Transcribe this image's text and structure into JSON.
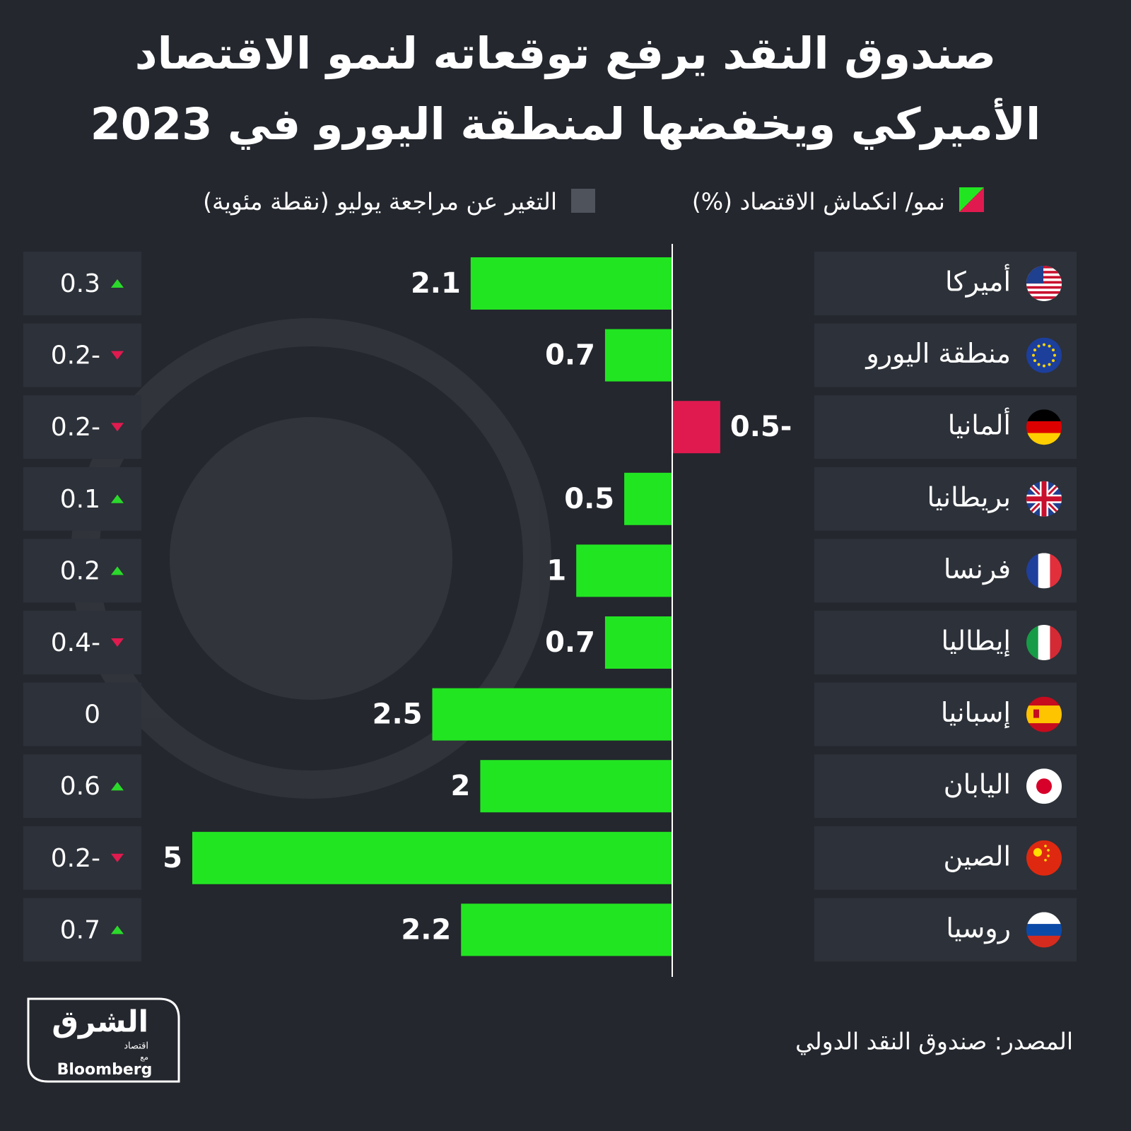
{
  "header": {
    "title_line1": "صندوق النقد يرفع توقعاته لنمو الاقتصاد",
    "title_line2": "الأميركي ويخفضها لمنطقة اليورو في 2023"
  },
  "chart_data": {
    "type": "bar",
    "categories": [
      "أميركا",
      "منطقة اليورو",
      "ألمانيا",
      "بريطانيا",
      "فرنسا",
      "إيطاليا",
      "إسبانيا",
      "اليابان",
      "الصين",
      "روسيا"
    ],
    "series": [
      {
        "name": "نمو/ انكماش الاقتصاد (%)",
        "color": "#22e522",
        "negative_color": "#e01a4f",
        "values": [
          2.1,
          0.7,
          -0.5,
          0.5,
          1,
          0.7,
          2.5,
          2,
          5,
          2.2
        ],
        "value_labels": [
          "2.1",
          "0.7",
          "0.5-",
          "0.5",
          "1",
          "0.7",
          "2.5",
          "2",
          "5",
          "2.2"
        ]
      },
      {
        "name": "التغير عن مراجعة يوليو (نقطة مئوية)",
        "color": "#4f535b",
        "values": [
          0.3,
          -0.2,
          -0.2,
          0.1,
          0.2,
          -0.4,
          0,
          0.6,
          -0.2,
          0.7
        ],
        "value_labels": [
          "0.3",
          "0.2-",
          "0.2-",
          "0.1",
          "0.2",
          "0.4-",
          "0",
          "0.6",
          "0.2-",
          "0.7"
        ]
      }
    ]
  },
  "footer": {
    "source": "المصدر: صندوق النقد الدولي"
  },
  "logo": {
    "brand": "الشرق",
    "sub": "اقتصاد",
    "with": "مع",
    "partner": "Bloomberg"
  }
}
